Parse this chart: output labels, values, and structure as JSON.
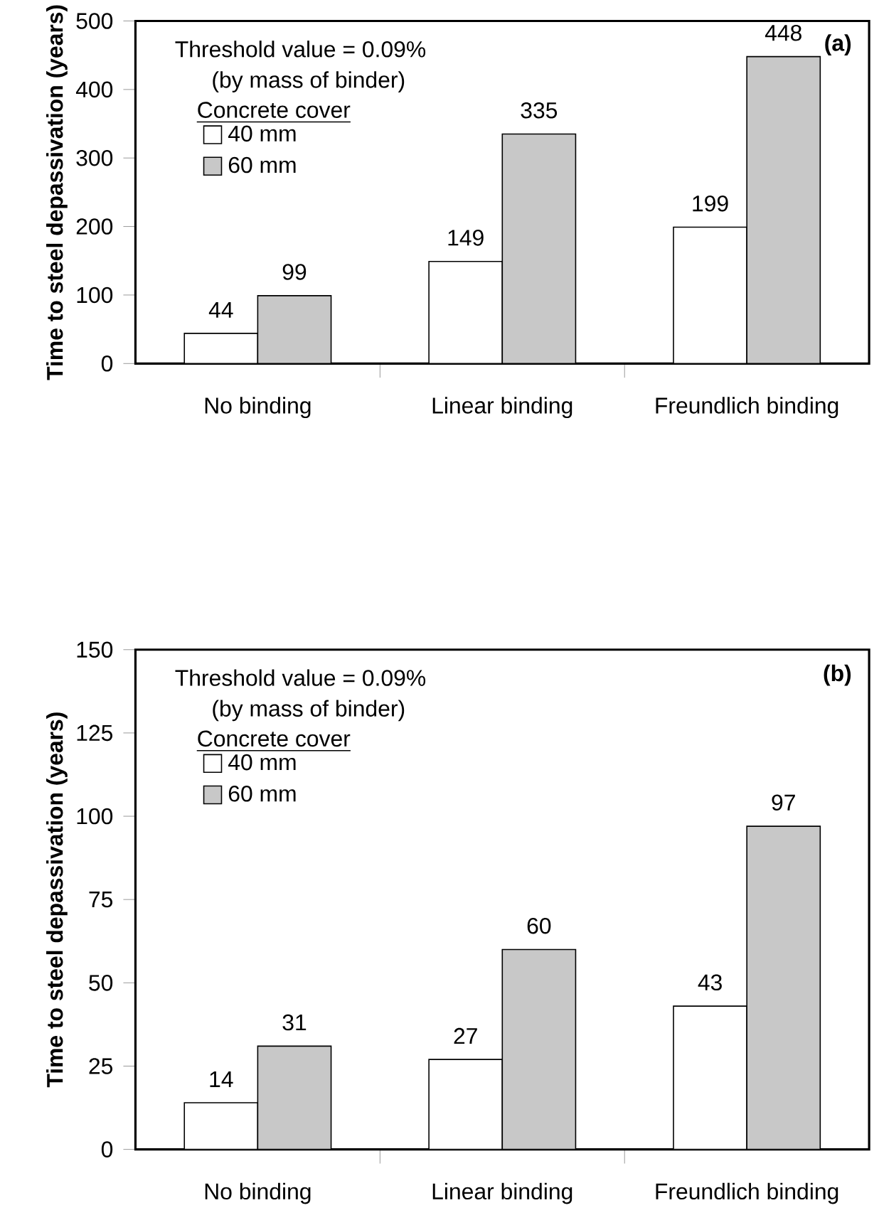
{
  "chart_data": [
    {
      "type": "bar",
      "title": "(a)",
      "ylabel": "Time to steel depassivation (years)",
      "categories": [
        "No binding",
        "Linear binding",
        "Freundlich binding"
      ],
      "series": [
        {
          "name": "40 mm",
          "color": "#ffffff",
          "values": [
            44,
            149,
            199
          ]
        },
        {
          "name": "60 mm",
          "color": "#c8c8c8",
          "values": [
            99,
            335,
            448
          ]
        }
      ],
      "legend_title": "Concrete cover",
      "annotations": [
        "Threshold value = 0.09%",
        "(by mass of binder)"
      ],
      "ylim": [
        0,
        500
      ],
      "yticks": [
        0,
        100,
        200,
        300,
        400,
        500
      ],
      "data_labels": true,
      "legend": "top left"
    },
    {
      "type": "bar",
      "title": "(b)",
      "ylabel": "Time to steel depassivation (years)",
      "categories": [
        "No binding",
        "Linear binding",
        "Freundlich binding"
      ],
      "series": [
        {
          "name": "40 mm",
          "color": "#ffffff",
          "values": [
            14,
            27,
            43
          ]
        },
        {
          "name": "60 mm",
          "color": "#c8c8c8",
          "values": [
            31,
            60,
            97
          ]
        }
      ],
      "legend_title": "Concrete cover",
      "annotations": [
        "Threshold value = 0.09%",
        "(by mass of binder)"
      ],
      "ylim": [
        0,
        150
      ],
      "yticks": [
        0,
        25,
        50,
        75,
        100,
        125,
        150
      ],
      "data_labels": true,
      "legend": "top left"
    }
  ]
}
